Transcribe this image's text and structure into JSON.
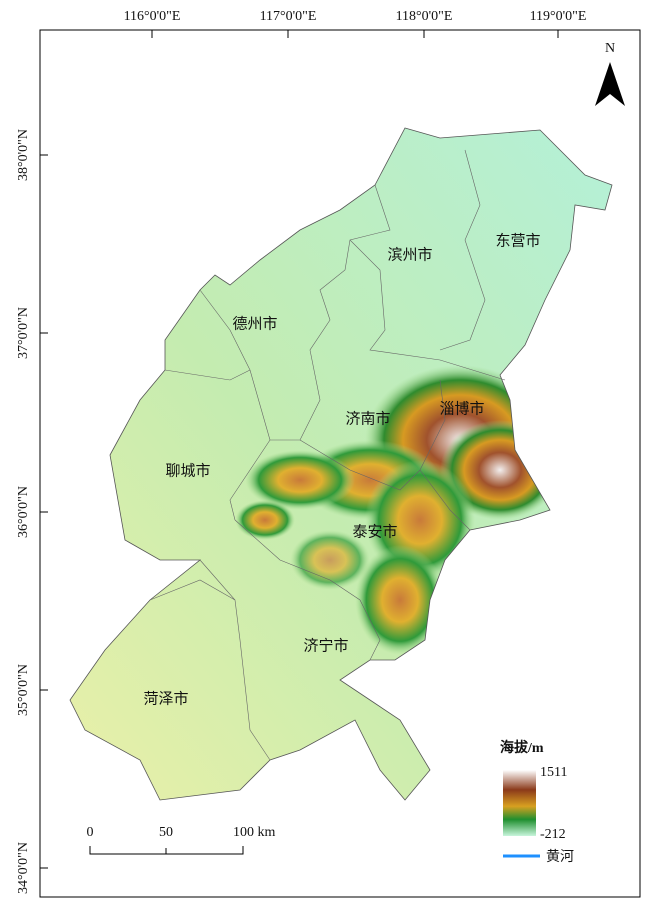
{
  "map": {
    "longitude_labels": [
      "116°0'0\"E",
      "117°0'0\"E",
      "118°0'0\"E",
      "119°0'0\"E"
    ],
    "latitude_labels": [
      "38°0'0\"N",
      "37°0'0\"N",
      "36°0'0\"N",
      "35°0'0\"N",
      "34°0'0\"N"
    ],
    "north": "N",
    "cities": [
      "滨州市",
      "东营市",
      "德州市",
      "济南市",
      "淄博市",
      "聊城市",
      "泰安市",
      "济宁市",
      "菏泽市"
    ],
    "legend": {
      "title": "海拔/m",
      "max": "1511",
      "min": "-212",
      "river": "黄河"
    },
    "scale_bar": [
      "0",
      "50",
      "100 km"
    ]
  }
}
